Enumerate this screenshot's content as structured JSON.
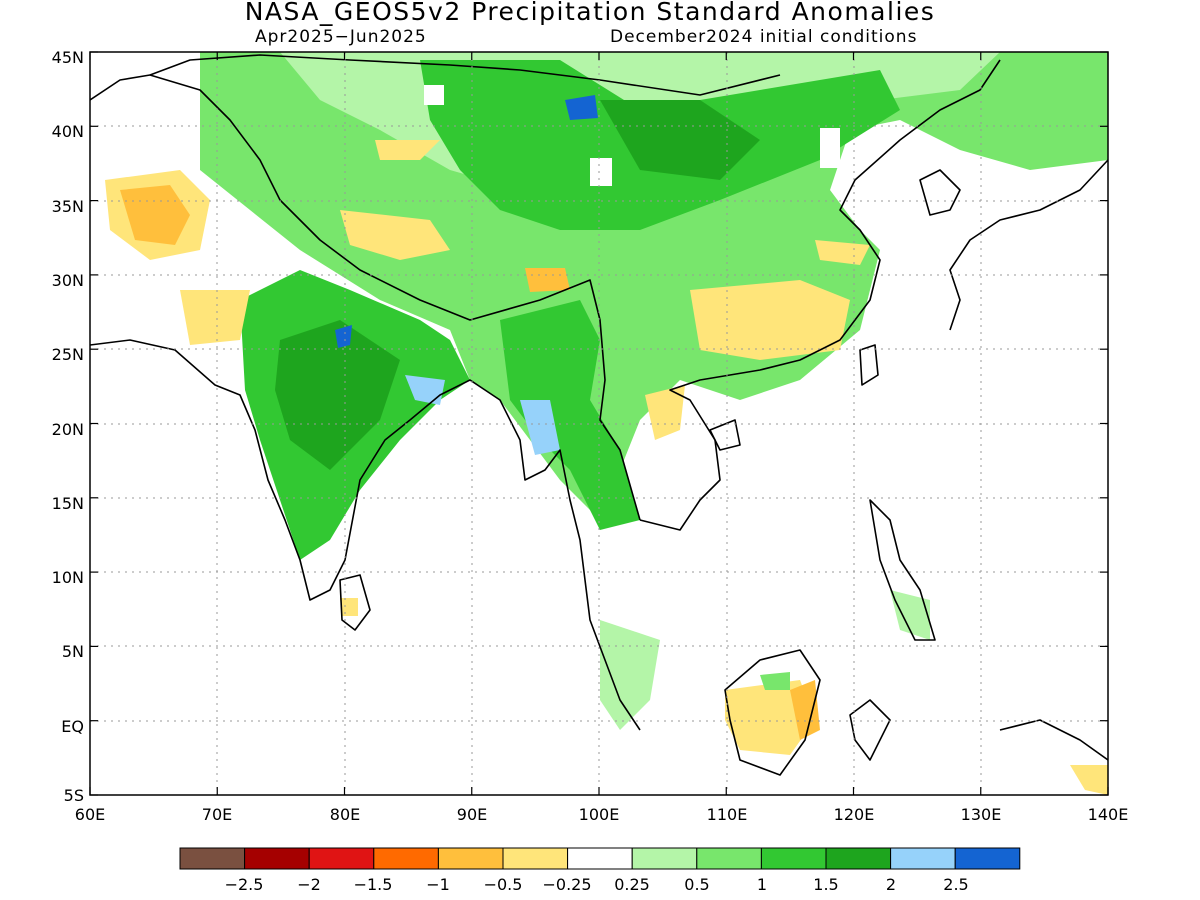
{
  "title": "NASA_GEOS5v2 Precipitation Standard Anomalies",
  "period": "Apr2025−Jun2025",
  "init": "December2024 initial conditions",
  "lat_labels": [
    "45N",
    "40N",
    "35N",
    "30N",
    "25N",
    "20N",
    "15N",
    "10N",
    "5N",
    "EQ",
    "5S"
  ],
  "lon_labels": [
    "60E",
    "70E",
    "80E",
    "90E",
    "100E",
    "110E",
    "120E",
    "130E",
    "140E"
  ],
  "legend": {
    "colors": [
      "#7a5040",
      "#a50000",
      "#e01414",
      "#ff6a00",
      "#ffbf3c",
      "#ffe57a",
      "#ffffff",
      "#b4f5a8",
      "#78e66c",
      "#32c832",
      "#1ea51e",
      "#96d2fa",
      "#1464d2"
    ],
    "labels": [
      "−2.5",
      "−2",
      "−1.5",
      "−1",
      "−0.5",
      "−0.25",
      "0.25",
      "0.5",
      "1",
      "1.5",
      "2",
      "2.5"
    ]
  }
}
